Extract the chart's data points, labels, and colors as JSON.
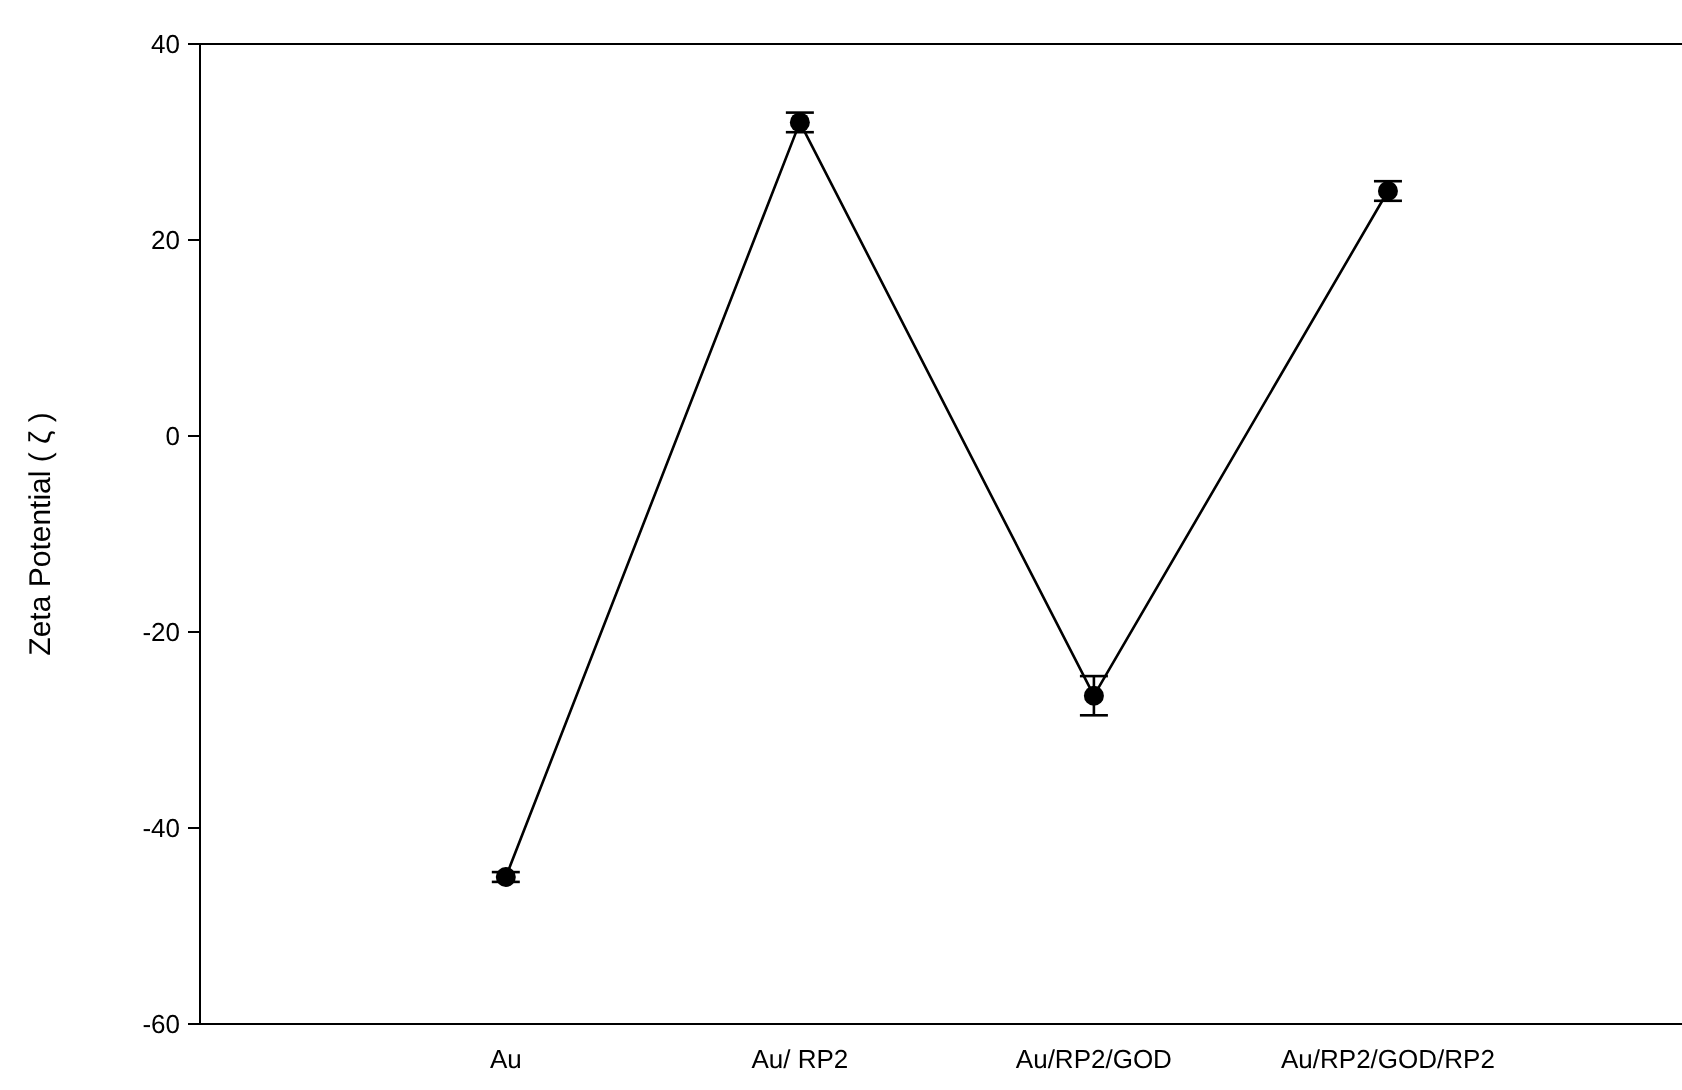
{
  "chart_data": {
    "type": "line",
    "ylabel": "Zeta Potential ( ζ )",
    "categories": [
      "Au",
      "Au/ RP2",
      "Au/RP2/GOD",
      "Au/RP2/GOD/RP2"
    ],
    "series": [
      {
        "color": "#000000",
        "values": [
          -45,
          32,
          -26.5,
          25
        ],
        "errors": [
          0.5,
          1,
          2,
          1
        ]
      }
    ],
    "ylim": [
      -60,
      40
    ],
    "yticks": [
      -60,
      -40,
      -20,
      0,
      20,
      40
    ],
    "grid": false,
    "marker": "circle",
    "line_style": "solid"
  }
}
